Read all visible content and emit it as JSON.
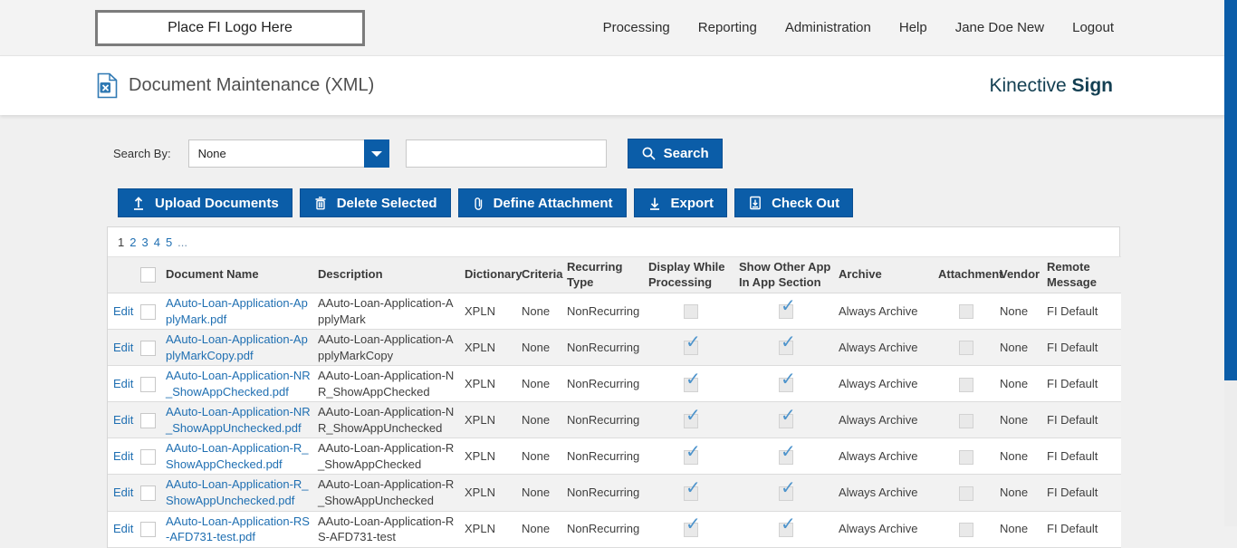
{
  "header": {
    "logo_text": "Place FI Logo Here",
    "nav": [
      "Processing",
      "Reporting",
      "Administration",
      "Help",
      "Jane Doe New",
      "Logout"
    ]
  },
  "title_bar": {
    "title": "Document Maintenance (XML)",
    "brand_regular": "Kinective ",
    "brand_bold": "Sign"
  },
  "search": {
    "label": "Search By:",
    "dropdown_value": "None",
    "input_value": "",
    "button_label": "Search"
  },
  "toolbar": {
    "buttons": [
      "Upload Documents",
      "Delete Selected",
      "Define Attachment",
      "Export",
      "Check Out"
    ]
  },
  "pagination": {
    "current": "1",
    "pages": [
      "2",
      "3",
      "4",
      "5"
    ],
    "ellipsis": "..."
  },
  "icons": {
    "check_glyph": "✓"
  },
  "colors": {
    "accent_blue": "#0b5da8",
    "brand_teal": "#133f52",
    "link_blue": "#1f6fb2",
    "check_blue": "#4e94cc"
  },
  "table": {
    "edit_label": "Edit",
    "columns": [
      {
        "key": "edit",
        "label": "",
        "type": "edit",
        "width": 30
      },
      {
        "key": "select",
        "label": "",
        "type": "select",
        "width": 34
      },
      {
        "key": "name",
        "label": "Document Name",
        "type": "doclink",
        "width": 168
      },
      {
        "key": "description",
        "label": "Description",
        "type": "text",
        "width": 162
      },
      {
        "key": "dictionary",
        "label": "Dictionary",
        "type": "text",
        "width": 63
      },
      {
        "key": "criteria",
        "label": "Criteria",
        "type": "text",
        "width": 50
      },
      {
        "key": "recurring_type",
        "label": "Recurring Type",
        "type": "text",
        "width": 90
      },
      {
        "key": "display_while_processing",
        "label": "Display While\nProcessing",
        "type": "check",
        "width": 100
      },
      {
        "key": "show_other_app",
        "label": "Show Other App\nIn App Section",
        "type": "check",
        "width": 110
      },
      {
        "key": "archive",
        "label": "Archive",
        "type": "text",
        "width": 110
      },
      {
        "key": "attachment",
        "label": "Attachment",
        "type": "check",
        "width": 68
      },
      {
        "key": "vendor",
        "label": "Vendor",
        "type": "text",
        "width": 52
      },
      {
        "key": "remote_message",
        "label": "Remote\nMessage",
        "type": "text",
        "width": 82
      }
    ],
    "rows": [
      {
        "name": "AAuto-Loan-Application-ApplyMark.pdf",
        "description": "AAuto-Loan-Application-ApplyMark",
        "dictionary": "XPLN",
        "criteria": "None",
        "recurring_type": "NonRecurring",
        "display_while_processing": false,
        "show_other_app": true,
        "archive": "Always Archive",
        "attachment": false,
        "vendor": "None",
        "remote_message": "FI Default"
      },
      {
        "name": "AAuto-Loan-Application-ApplyMarkCopy.pdf",
        "description": "AAuto-Loan-Application-ApplyMarkCopy",
        "dictionary": "XPLN",
        "criteria": "None",
        "recurring_type": "NonRecurring",
        "display_while_processing": true,
        "show_other_app": true,
        "archive": "Always Archive",
        "attachment": false,
        "vendor": "None",
        "remote_message": "FI Default"
      },
      {
        "name": "AAuto-Loan-Application-NR_ShowAppChecked.pdf",
        "description": "AAuto-Loan-Application-NR_ShowAppChecked",
        "dictionary": "XPLN",
        "criteria": "None",
        "recurring_type": "NonRecurring",
        "display_while_processing": true,
        "show_other_app": true,
        "archive": "Always Archive",
        "attachment": false,
        "vendor": "None",
        "remote_message": "FI Default"
      },
      {
        "name": "AAuto-Loan-Application-NR_ShowAppUnchecked.pdf",
        "description": "AAuto-Loan-Application-NR_ShowAppUnchecked",
        "dictionary": "XPLN",
        "criteria": "None",
        "recurring_type": "NonRecurring",
        "display_while_processing": true,
        "show_other_app": true,
        "archive": "Always Archive",
        "attachment": false,
        "vendor": "None",
        "remote_message": "FI Default"
      },
      {
        "name": "AAuto-Loan-Application-R_ShowAppChecked.pdf",
        "description": "AAuto-Loan-Application-R_ShowAppChecked",
        "dictionary": "XPLN",
        "criteria": "None",
        "recurring_type": "NonRecurring",
        "display_while_processing": true,
        "show_other_app": true,
        "archive": "Always Archive",
        "attachment": false,
        "vendor": "None",
        "remote_message": "FI Default"
      },
      {
        "name": "AAuto-Loan-Application-R_ShowAppUnchecked.pdf",
        "description": "AAuto-Loan-Application-R_ShowAppUnchecked",
        "dictionary": "XPLN",
        "criteria": "None",
        "recurring_type": "NonRecurring",
        "display_while_processing": true,
        "show_other_app": true,
        "archive": "Always Archive",
        "attachment": false,
        "vendor": "None",
        "remote_message": "FI Default"
      },
      {
        "name": "AAuto-Loan-Application-RS-AFD731-test.pdf",
        "description": "AAuto-Loan-Application-RS-AFD731-test",
        "dictionary": "XPLN",
        "criteria": "None",
        "recurring_type": "NonRecurring",
        "display_while_processing": true,
        "show_other_app": true,
        "archive": "Always Archive",
        "attachment": false,
        "vendor": "None",
        "remote_message": "FI Default"
      }
    ]
  }
}
